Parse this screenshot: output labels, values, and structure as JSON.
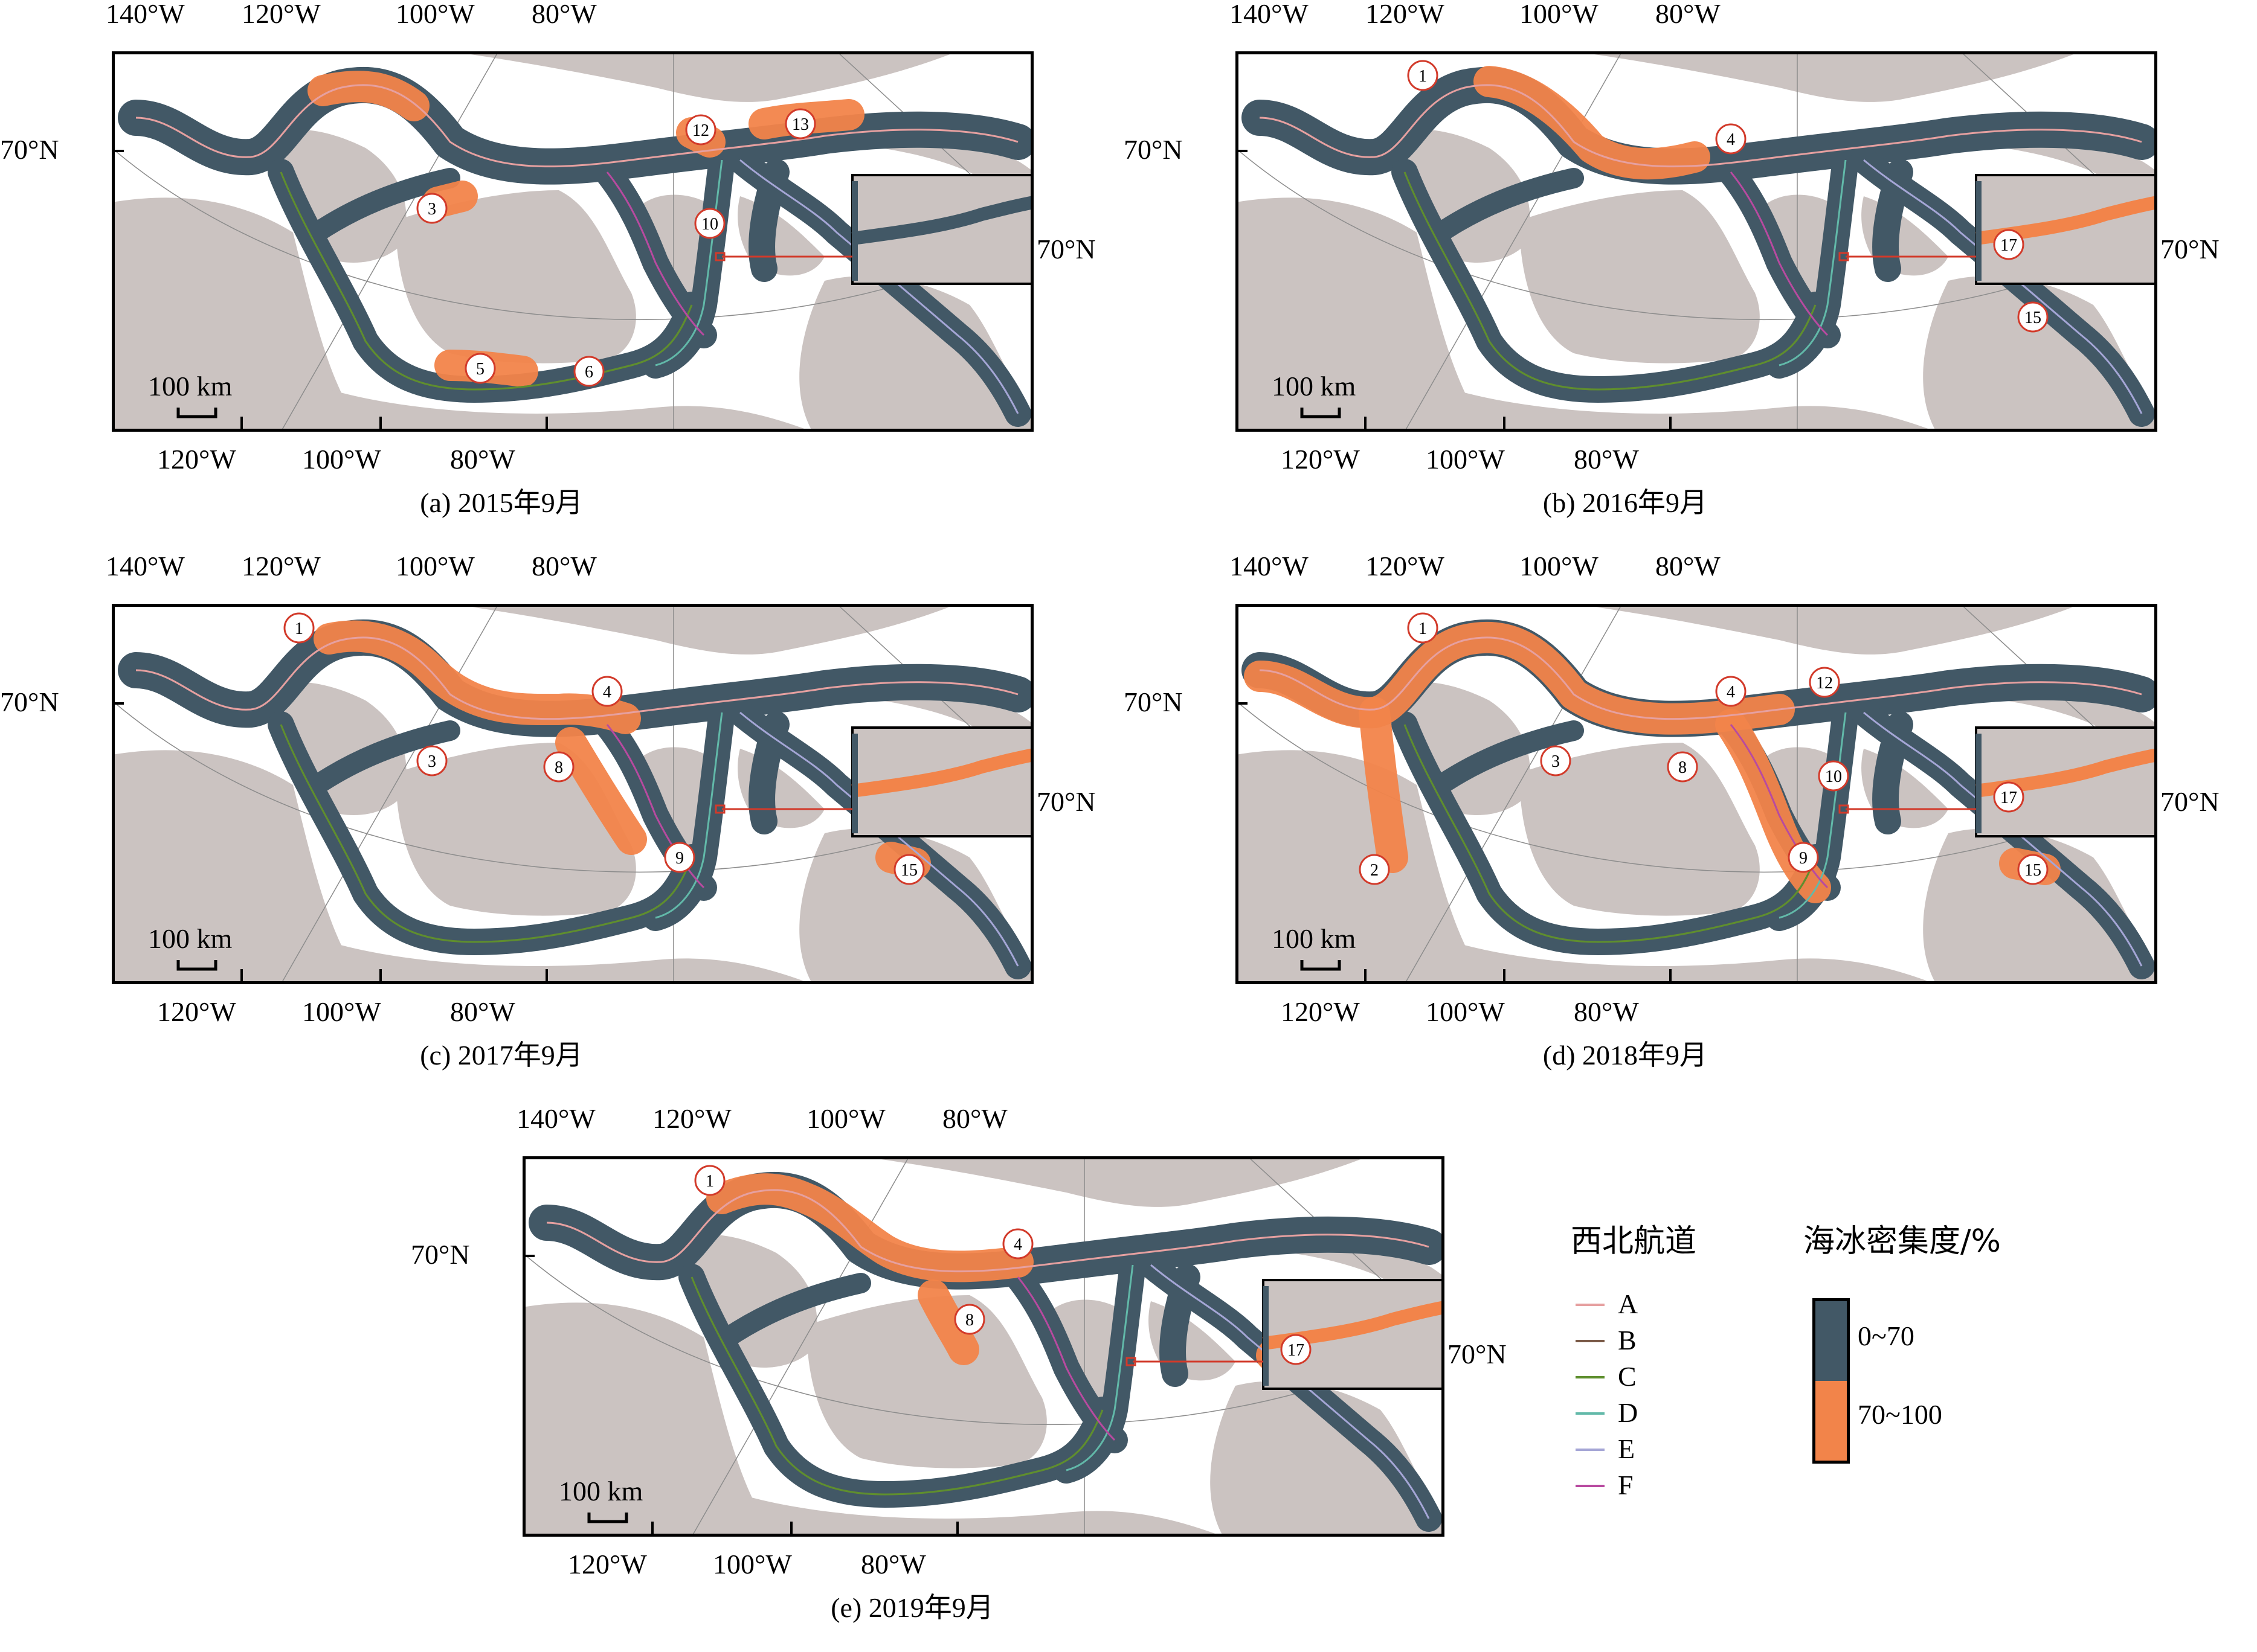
{
  "colors": {
    "land": "#cbc3c1",
    "sea": "#ffffff",
    "low_ice": "#425866",
    "high_ice": "#f2844a",
    "route_A": "#e6a0a0",
    "route_B": "#7a5a48",
    "route_C": "#5e8f2e",
    "route_D": "#62b9a9",
    "route_E": "#a5a6d6",
    "route_F": "#b84aa0"
  },
  "axis_labels": {
    "top": [
      "140°W",
      "120°W",
      "100°W",
      "80°W"
    ],
    "bottom": [
      "120°W",
      "100°W",
      "80°W"
    ],
    "left": "70°N",
    "inset_right": "70°N"
  },
  "scale_bar": "100 km",
  "panels": [
    {
      "caption": "(a) 2015年9月",
      "markers": [
        "12",
        "13",
        "3",
        "10",
        "5",
        "6"
      ]
    },
    {
      "caption": "(b) 2016年9月",
      "markers": [
        "1",
        "4",
        "17",
        "15"
      ]
    },
    {
      "caption": "(c) 2017年9月",
      "markers": [
        "1",
        "4",
        "3",
        "8",
        "9",
        "15"
      ]
    },
    {
      "caption": "(d) 2018年9月",
      "markers": [
        "1",
        "4",
        "12",
        "3",
        "10",
        "8",
        "2",
        "17",
        "9",
        "15"
      ]
    },
    {
      "caption": "(e) 2019年9月",
      "markers": [
        "1",
        "4",
        "8",
        "17"
      ]
    }
  ],
  "legend": {
    "routes_title": "西北航道",
    "routes": [
      "A",
      "B",
      "C",
      "D",
      "E",
      "F"
    ],
    "ice_title": "海冰密集度/%",
    "classes": [
      "0~70",
      "70~100"
    ]
  }
}
